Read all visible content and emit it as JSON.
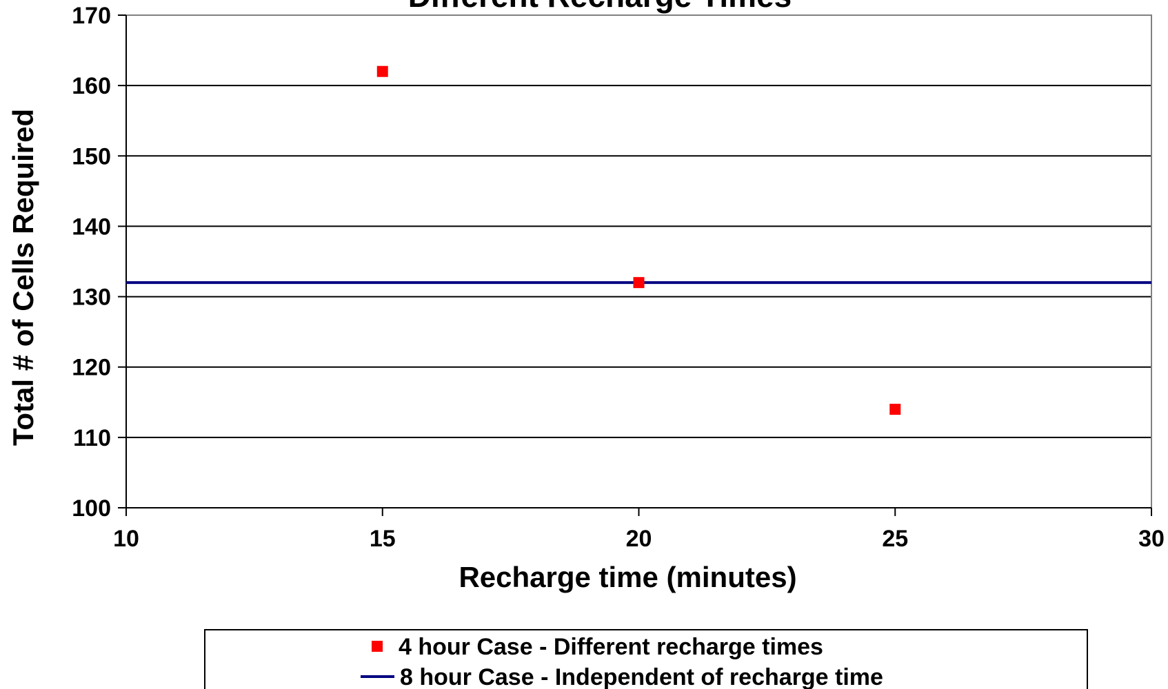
{
  "chart_data": {
    "type": "scatter",
    "title": "Different Recharge Times",
    "xlabel": "Recharge time (minutes)",
    "ylabel": "Total # of Cells Required",
    "xlim": [
      10,
      30
    ],
    "ylim": [
      100,
      170
    ],
    "xticks": [
      10,
      15,
      20,
      25,
      30
    ],
    "yticks": [
      100,
      110,
      120,
      130,
      140,
      150,
      160,
      170
    ],
    "grid": "horizontal",
    "legend_position": "bottom",
    "series": [
      {
        "name": "4 hour Case - Different recharge times",
        "kind": "scatter",
        "marker": "square",
        "color": "#ff0000",
        "x": [
          15,
          20,
          25
        ],
        "y": [
          162,
          132,
          114
        ]
      },
      {
        "name": "8 hour Case - Independent of recharge time",
        "kind": "line",
        "color": "#000080",
        "x": [
          10,
          30
        ],
        "y": [
          132,
          132
        ]
      }
    ]
  }
}
